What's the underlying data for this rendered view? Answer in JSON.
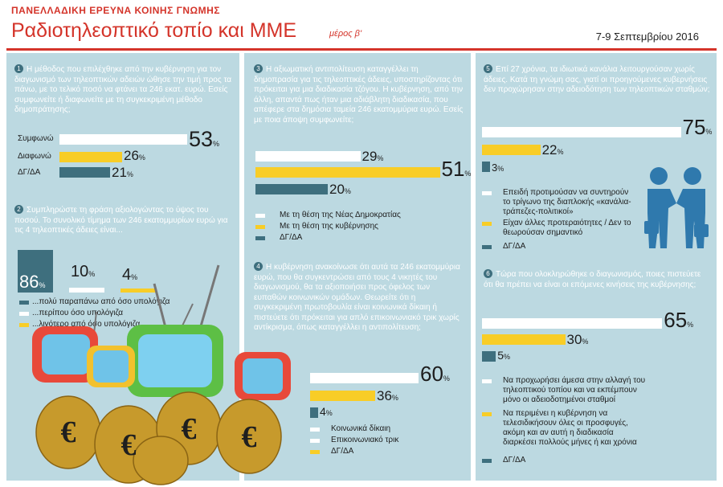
{
  "header": {
    "kicker": "ΠΑΝΕΛΛΑΔΙΚΗ ΕΡΕΥΝΑ ΚΟΙΝΗΣ ΓΝΩΜΗΣ",
    "title": "Ραδιοτηλεοπτικό τοπίο και ΜΜΕ",
    "subtitle": "μέρος β'",
    "date": "7-9 Σεπτεμβρίου 2016"
  },
  "colors": {
    "white": "#ffffff",
    "yellow": "#f8cd27",
    "teal": "#3e6f7e",
    "panel": "#bcd9e1",
    "accent": "#d4342a"
  },
  "percent_sign": "%",
  "questions": {
    "q1": {
      "num": "1",
      "text": "Η μέθοδος που επιλέχθηκε από την κυβέρνηση για τον διαγωνισμό των τηλεοπτικών αδειών ώθησε την τιμή προς τα πάνω, με το τελικό ποσό να φτάνει τα 246 εκατ. ευρώ. Εσείς συμφωνείτε ή διαφωνείτε με τη συγκεκριμένη μέθοδο δημοπράτησης;"
    },
    "q2": {
      "num": "2",
      "text": "Συμπληρώστε τη φράση αξιολογώντας το ύψος του ποσού. Το συνολικό τίμημα των 246 εκατομμυρίων ευρώ για τις 4 τηλεοπτικές άδειες είναι..."
    },
    "q3": {
      "num": "3",
      "text": "Η αξιωματική αντιπολίτευση καταγγέλλει τη δημοπρασία για τις τηλεοπτικές άδειες, υποστηρίζοντας ότι πρόκειται για μια διαδικασία τζόγου. Η κυβέρνηση, από την άλλη, απαντά πως ήταν μια αδιάβλητη διαδικασία, που απέφερε στα δημόσια ταμεία 246 εκατομμύρια ευρώ. Εσείς με ποια άποψη συμφωνείτε;"
    },
    "q4": {
      "num": "4",
      "text": "Η κυβέρνηση ανακοίνωσε ότι αυτά τα 246 εκατομμύρια ευρώ, που θα συγκεντρώσει από τους 4 νικητές του διαγωνισμού, θα τα αξιοποιήσει προς όφελος των ευπαθών κοινωνικών ομάδων. Θεωρείτε ότι η συγκεκριμένη πρωτοβουλία είναι κοινωνικά δίκαιη ή πιστεύετε ότι πρόκειται για απλό επικοινωνιακό τρικ χωρίς αντίκρισμα, όπως καταγγέλλει η αντιπολίτευση;"
    },
    "q5": {
      "num": "5",
      "text": "Επί 27 χρόνια, τα ιδιωτικά κανάλια λειτουργούσαν χωρίς άδειες. Κατά τη γνώμη σας, γιατί οι προηγούμενες κυβερνήσεις δεν προχώρησαν στην αδειοδότηση των τηλεοπτικών σταθμών;"
    },
    "q6": {
      "num": "6",
      "text": "Τώρα που ολοκληρώθηκε ο διαγωνισμός, ποιες πιστεύετε ότι θα πρέπει να είναι οι επόμενες κινήσεις της κυβέρνησης;"
    }
  },
  "chart_data": [
    {
      "id": "q1",
      "type": "bar",
      "categories": [
        "Συμφωνώ",
        "Διαφωνώ",
        "ΔΓ/ΔΑ"
      ],
      "values": [
        53,
        26,
        21
      ]
    },
    {
      "id": "q2",
      "type": "bar",
      "categories": [
        "...πολύ παραπάνω από όσο υπολόγιζα",
        "...περίπου όσο υπολόγιζα",
        "...λιγότερο από όσο υπολόγιζα"
      ],
      "values": [
        86,
        10,
        4
      ]
    },
    {
      "id": "q3",
      "type": "bar",
      "categories": [
        "Με τη θέση της Νέας Δημοκρατίας",
        "Με τη θέση της κυβέρνησης",
        "ΔΓ/ΔΑ"
      ],
      "values": [
        29,
        51,
        20
      ]
    },
    {
      "id": "q4",
      "type": "bar",
      "categories": [
        "Κοινωνικά δίκαιη",
        "Επικοινωνιακό τρικ",
        "ΔΓ/ΔΑ"
      ],
      "values": [
        60,
        36,
        4
      ]
    },
    {
      "id": "q5",
      "type": "bar",
      "categories": [
        "Επειδή προτιμούσαν να συντηρούν το τρίγωνο της διαπλοκής «κανάλια-τράπεζες-πολιτικοί»",
        "Είχαν άλλες προτεραιότητες / Δεν το θεωρούσαν σημαντικό",
        "ΔΓ/ΔΑ"
      ],
      "values": [
        75,
        22,
        3
      ]
    },
    {
      "id": "q6",
      "type": "bar",
      "categories": [
        "Να προχωρήσει άμεσα στην αλλαγή του τηλεοπτικού τοπίου και να εκπέμπουν μόνο οι αδειοδοτημένοι σταθμοί",
        "Να περιμένει η κυβέρνηση να τελεσιδικήσουν όλες οι προσφυγές, ακόμη και αν αυτή η διαδικασία διαρκέσει πολλούς μήνες ή και χρόνια",
        "ΔΓ/ΔΑ"
      ],
      "values": [
        65,
        30,
        5
      ]
    }
  ]
}
